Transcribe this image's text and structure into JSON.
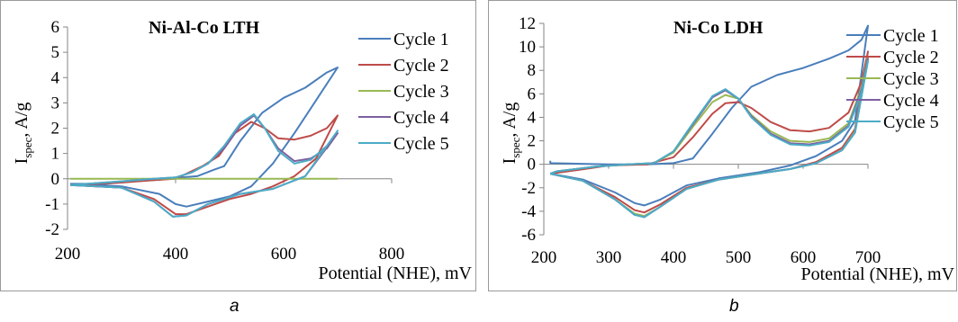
{
  "chart_data": [
    {
      "type": "line",
      "panel_caption": "a",
      "title": "Ni-Al-Co LTH",
      "xlabel": "Potential (NHE), mV",
      "ylabel_main": "I",
      "ylabel_sub": "spec",
      "ylabel_tail": ", A/g",
      "xlim": [
        200,
        800
      ],
      "ylim": [
        -2,
        6
      ],
      "xticks": [
        200,
        400,
        600,
        800
      ],
      "yticks": [
        -2,
        -1,
        0,
        1,
        2,
        3,
        4,
        5,
        6
      ],
      "grid": false,
      "legend_position": "right",
      "series": [
        {
          "name": "Cycle 1",
          "color": "#4a7ebb",
          "x": [
            205,
            300,
            370,
            400,
            420,
            460,
            500,
            540,
            580,
            620,
            660,
            700,
            680,
            640,
            600,
            560,
            520,
            490,
            470,
            440,
            410,
            390,
            360,
            320,
            270,
            205
          ],
          "y": [
            -0.2,
            -0.3,
            -0.6,
            -1.0,
            -1.1,
            -0.9,
            -0.7,
            -0.3,
            0.6,
            1.8,
            3.1,
            4.4,
            4.2,
            3.6,
            3.2,
            2.6,
            1.5,
            0.5,
            0.35,
            0.1,
            0.05,
            0.0,
            -0.05,
            -0.1,
            -0.2,
            -0.2
          ]
        },
        {
          "name": "Cycle 2",
          "color": "#be4b48",
          "x": [
            205,
            300,
            360,
            400,
            420,
            460,
            500,
            540,
            580,
            620,
            660,
            700,
            680,
            650,
            620,
            590,
            565,
            540,
            510,
            480,
            450,
            420,
            400,
            360,
            300,
            205
          ],
          "y": [
            -0.25,
            -0.35,
            -0.8,
            -1.4,
            -1.4,
            -1.1,
            -0.8,
            -0.6,
            -0.3,
            0.1,
            0.8,
            2.5,
            2.0,
            1.7,
            1.55,
            1.6,
            2.0,
            2.25,
            1.8,
            0.9,
            0.5,
            0.2,
            0.0,
            -0.05,
            -0.15,
            -0.25
          ]
        },
        {
          "name": "Cycle 3",
          "color": "#98b954",
          "x": [
            205,
            300,
            400,
            500,
            600,
            700
          ],
          "y": [
            0.0,
            0.0,
            0.0,
            0.0,
            0.0,
            0.0
          ]
        },
        {
          "name": "Cycle 4",
          "color": "#7d60a0",
          "x": [
            205,
            300,
            360,
            395,
            420,
            460,
            520,
            580,
            640,
            700,
            680,
            650,
            620,
            590,
            565,
            545,
            520,
            490,
            460,
            430,
            400,
            360,
            300,
            205
          ],
          "y": [
            -0.25,
            -0.35,
            -0.9,
            -1.5,
            -1.45,
            -1.0,
            -0.6,
            -0.4,
            0.1,
            1.8,
            1.2,
            0.8,
            0.7,
            1.2,
            2.0,
            2.5,
            2.1,
            1.2,
            0.6,
            0.25,
            0.05,
            0.0,
            -0.1,
            -0.25
          ]
        },
        {
          "name": "Cycle 5",
          "color": "#4bacc6",
          "x": [
            205,
            300,
            360,
            395,
            420,
            460,
            520,
            580,
            640,
            700,
            680,
            650,
            620,
            590,
            565,
            545,
            520,
            490,
            460,
            430,
            400,
            360,
            300,
            205
          ],
          "y": [
            -0.25,
            -0.35,
            -0.9,
            -1.5,
            -1.45,
            -1.0,
            -0.6,
            -0.4,
            0.1,
            1.9,
            1.3,
            0.75,
            0.6,
            1.1,
            2.0,
            2.55,
            2.2,
            1.3,
            0.6,
            0.25,
            0.05,
            0.0,
            -0.1,
            -0.25
          ]
        }
      ]
    },
    {
      "type": "line",
      "panel_caption": "b",
      "title": "Ni-Co LDH",
      "xlabel": "Potential (NHE), mV",
      "ylabel_main": "I",
      "ylabel_sub": "spec",
      "ylabel_tail": ", A/g",
      "xlim": [
        200,
        700
      ],
      "ylim": [
        -6,
        12
      ],
      "xticks": [
        200,
        300,
        400,
        500,
        600,
        700
      ],
      "yticks": [
        -6,
        -4,
        -2,
        0,
        2,
        4,
        6,
        8,
        10,
        12
      ],
      "grid": false,
      "legend_position": "right",
      "series": [
        {
          "name": "Cycle 1",
          "color": "#4a7ebb",
          "x": [
            210,
            260,
            310,
            340,
            355,
            380,
            420,
            470,
            530,
            580,
            620,
            660,
            680,
            700,
            690,
            670,
            640,
            600,
            560,
            520,
            490,
            460,
            430,
            400,
            360,
            300,
            250,
            210,
            210
          ],
          "y": [
            -0.8,
            -1.3,
            -2.4,
            -3.3,
            -3.5,
            -3.0,
            -1.8,
            -1.2,
            -0.7,
            -0.1,
            0.7,
            2.0,
            3.7,
            11.8,
            10.6,
            9.7,
            9.0,
            8.2,
            7.6,
            6.6,
            4.8,
            2.6,
            0.5,
            0.1,
            0.0,
            0.0,
            0.05,
            0.1,
            0.3
          ]
        },
        {
          "name": "Cycle 2",
          "color": "#be4b48",
          "x": [
            210,
            260,
            310,
            340,
            355,
            380,
            420,
            470,
            530,
            580,
            620,
            660,
            680,
            700,
            690,
            670,
            640,
            610,
            580,
            550,
            520,
            500,
            480,
            460,
            430,
            400,
            360,
            300,
            250,
            210
          ],
          "y": [
            -0.8,
            -1.4,
            -2.8,
            -3.9,
            -4.1,
            -3.4,
            -2.0,
            -1.3,
            -0.8,
            -0.4,
            0.2,
            1.4,
            3.0,
            9.6,
            7.0,
            4.4,
            3.1,
            2.8,
            2.9,
            3.6,
            4.8,
            5.3,
            5.2,
            4.3,
            2.3,
            0.6,
            0.0,
            -0.1,
            -0.5,
            -0.8
          ]
        },
        {
          "name": "Cycle 3",
          "color": "#98b954",
          "x": [
            210,
            260,
            310,
            340,
            355,
            380,
            420,
            470,
            530,
            580,
            620,
            660,
            680,
            700,
            690,
            670,
            640,
            610,
            580,
            550,
            520,
            500,
            480,
            460,
            430,
            400,
            370,
            330,
            280,
            220,
            210
          ],
          "y": [
            -0.8,
            -1.4,
            -3.0,
            -4.2,
            -4.4,
            -3.6,
            -2.1,
            -1.3,
            -0.8,
            -0.4,
            0.1,
            1.2,
            2.8,
            9.2,
            6.5,
            3.5,
            2.2,
            1.9,
            2.0,
            2.8,
            4.2,
            5.6,
            5.9,
            5.3,
            3.2,
            1.0,
            0.1,
            0.0,
            -0.2,
            -0.6,
            -0.8
          ]
        },
        {
          "name": "Cycle 4",
          "color": "#7d60a0",
          "x": [
            210,
            260,
            310,
            340,
            355,
            380,
            420,
            470,
            530,
            580,
            620,
            660,
            680,
            700,
            690,
            670,
            640,
            610,
            580,
            550,
            520,
            500,
            480,
            460,
            430,
            400,
            370,
            330,
            280,
            220,
            210
          ],
          "y": [
            -0.8,
            -1.4,
            -3.0,
            -4.3,
            -4.5,
            -3.6,
            -2.1,
            -1.3,
            -0.8,
            -0.4,
            0.1,
            1.2,
            2.7,
            9.0,
            6.3,
            3.3,
            2.0,
            1.7,
            1.8,
            2.6,
            4.1,
            5.6,
            6.3,
            5.7,
            3.4,
            1.1,
            0.1,
            0.0,
            -0.2,
            -0.6,
            -0.8
          ]
        },
        {
          "name": "Cycle 5",
          "color": "#4bacc6",
          "x": [
            210,
            260,
            310,
            340,
            355,
            380,
            420,
            470,
            530,
            580,
            620,
            660,
            680,
            700,
            690,
            670,
            640,
            610,
            580,
            550,
            520,
            500,
            480,
            460,
            430,
            400,
            370,
            330,
            280,
            220,
            210
          ],
          "y": [
            -0.8,
            -1.4,
            -3.0,
            -4.3,
            -4.5,
            -3.6,
            -2.1,
            -1.3,
            -0.8,
            -0.4,
            0.1,
            1.2,
            2.7,
            8.8,
            6.1,
            3.2,
            1.9,
            1.6,
            1.7,
            2.5,
            4.0,
            5.6,
            6.4,
            5.8,
            3.5,
            1.1,
            0.1,
            0.0,
            -0.2,
            -0.6,
            -0.8
          ]
        }
      ]
    }
  ]
}
